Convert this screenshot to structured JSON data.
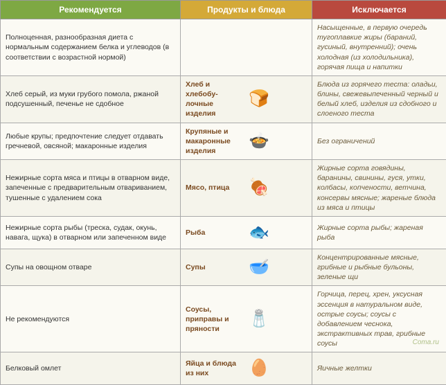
{
  "headers": {
    "recommended": "Рекомендуется",
    "products": "Продукты и блюда",
    "excluded": "Исключается"
  },
  "colors": {
    "rec_header_bg": "#7ea843",
    "prod_header_bg": "#d4a938",
    "exc_header_bg": "#b9493e",
    "header_text": "#ffffff",
    "row_bg": "#fbfaf4",
    "row_alt_bg": "#f5f4eb",
    "border": "#aaaaaa",
    "exc_text": "#6a5a3a",
    "prod_text": "#7a4a20"
  },
  "rows": [
    {
      "rec": "Полноценная, разнообразная диета с нормальным содержанием белка и углеводов (в соответствии с возрастной нормой)",
      "prod": "",
      "icon": "",
      "exc": "Насыщенные, в первую очередь тугоплавкие жиры (бараний, гусиный, внутренний); очень холодная (из холодильника), горячая пища и напитки"
    },
    {
      "rec": "Хлеб серый, из муки грубого помола, ржаной подсушенный, печенье не сдобное",
      "prod": "Хлеб и хлебобу­лочные изделия",
      "icon": "🍞",
      "exc": "Блюда из горячего теста: оладьи, блины, свежевыпеченный черный и белый хлеб, изделия из сдобного и слоеного теста"
    },
    {
      "rec": "Любые крупы; предпочтение следует отдавать гречневой, овсяной; макаронные изделия",
      "prod": "Крупяные и макаронные изделия",
      "icon": "🍲",
      "exc": "Без ограничений"
    },
    {
      "rec": "Нежирные сорта мяса и птицы в отварном виде, запеченные с предварительным отвариванием, тушенные с удалением сока",
      "prod": "Мясо, птица",
      "icon": "🍖",
      "exc": "Жирные сорта говядины, баранины, свинины, гуся, утки, колбасы, копчености, ветчина, консервы мясные; жареные блюда из мяса и птицы"
    },
    {
      "rec": "Нежирные сорта рыбы (треска, судак, окунь, навага, щука) в отварном или запеченном виде",
      "prod": "Рыба",
      "icon": "🐟",
      "exc": "Жирные сорта рыбы; жареная рыба"
    },
    {
      "rec": "Супы на овощном отваре",
      "prod": "Супы",
      "icon": "🥣",
      "exc": "Концентрированные мясные, грибные и рыбные бульоны, зеленые щи"
    },
    {
      "rec": "Не рекомендуются",
      "prod": "Соусы, приправы и пряности",
      "icon": "🧂",
      "exc": "Горчица, перец, хрен, уксусная эссенция в натуральном виде, острые соусы; соусы с добавлением чеснока, экстрактивных трав, грибные соусы"
    },
    {
      "rec": "Белковый омлет",
      "prod": "Яйца и блюда из них",
      "icon": "🥚",
      "exc": "Яичные желтки"
    }
  ],
  "watermark": "Coma.ru"
}
